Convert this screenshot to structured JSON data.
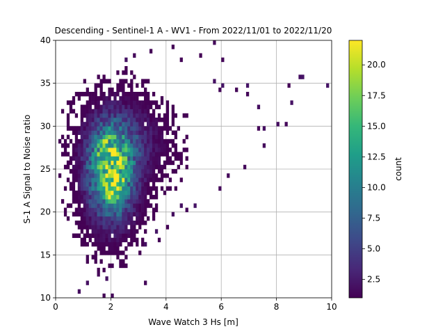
{
  "chart_data": {
    "type": "heatmap",
    "title": "Descending - Sentinel-1 A - WV1 - From 2022/11/01 to 2022/11/20",
    "xlabel": "Wave Watch 3 Hs [m]",
    "ylabel": "S-1 A Signal to Noise ratio",
    "xlim": [
      0,
      10
    ],
    "ylim": [
      10,
      40
    ],
    "xticks": [
      "0",
      "2",
      "4",
      "6",
      "8",
      "10"
    ],
    "yticks": [
      "10",
      "15",
      "20",
      "25",
      "30",
      "35",
      "40"
    ],
    "grid": true,
    "bin_width_x": 0.1,
    "bin_height_y": 0.5,
    "colorbar": {
      "label": "count",
      "range": [
        1,
        22
      ],
      "ticks": [
        "2.5",
        "5.0",
        "7.5",
        "10.0",
        "12.5",
        "15.0",
        "17.5",
        "20.0"
      ],
      "colormap": [
        "#440154",
        "#482878",
        "#3e4989",
        "#31688e",
        "#26828e",
        "#1f9e89",
        "#35b779",
        "#6ece58",
        "#b5de2b",
        "#fde725"
      ]
    },
    "density_model_cores": [
      {
        "x": 2.0,
        "y": 24.5,
        "sx": 0.55,
        "sy": 3.6,
        "peak": 17
      },
      {
        "x": 2.1,
        "y": 23.0,
        "sx": 0.25,
        "sy": 1.3,
        "peak": 5
      },
      {
        "x": 1.85,
        "y": 27.5,
        "sx": 0.3,
        "sy": 1.4,
        "peak": 3
      },
      {
        "x": 2.5,
        "y": 28.0,
        "sx": 0.9,
        "sy": 3.0,
        "peak": 4
      }
    ],
    "outlier_points": [
      [
        9.8,
        34.7
      ],
      [
        8.8,
        35.5
      ],
      [
        8.9,
        35.5
      ],
      [
        8.6,
        32.6
      ],
      [
        8.4,
        34.5
      ],
      [
        8.1,
        30.2
      ],
      [
        8.3,
        30.0
      ],
      [
        7.5,
        29.9
      ],
      [
        7.3,
        29.9
      ],
      [
        7.5,
        27.6
      ],
      [
        7.3,
        32.4
      ],
      [
        6.9,
        33.8
      ],
      [
        6.9,
        34.5
      ],
      [
        6.6,
        34.0
      ],
      [
        6.1,
        34.7
      ],
      [
        5.8,
        35.0
      ],
      [
        5.9,
        34.2
      ],
      [
        6.0,
        37.5
      ],
      [
        5.2,
        38.2
      ],
      [
        5.7,
        39.6
      ],
      [
        4.6,
        37.6
      ],
      [
        4.2,
        39.1
      ],
      [
        3.4,
        38.5
      ],
      [
        2.9,
        38.2
      ],
      [
        2.5,
        37.8
      ],
      [
        6.8,
        25.3
      ],
      [
        6.2,
        24.0
      ],
      [
        5.9,
        22.6
      ],
      [
        5.1,
        20.9
      ],
      [
        4.5,
        20.8
      ],
      [
        4.3,
        19.8
      ],
      [
        4.0,
        18.4
      ],
      [
        3.6,
        17.9
      ],
      [
        3.2,
        16.1
      ],
      [
        2.8,
        16.2
      ],
      [
        3.3,
        11.8
      ],
      [
        2.0,
        10.2
      ],
      [
        1.7,
        10.2
      ],
      [
        0.8,
        10.6
      ],
      [
        1.2,
        11.6
      ],
      [
        1.5,
        12.5
      ],
      [
        1.9,
        12.2
      ],
      [
        0.8,
        20.6
      ],
      [
        0.8,
        19.7
      ],
      [
        1.0,
        16.5
      ],
      [
        1.2,
        14.6
      ],
      [
        0.9,
        24.5
      ],
      [
        1.0,
        22.3
      ],
      [
        3.8,
        16.7
      ],
      [
        4.8,
        20.0
      ]
    ],
    "seed": 20221101
  }
}
